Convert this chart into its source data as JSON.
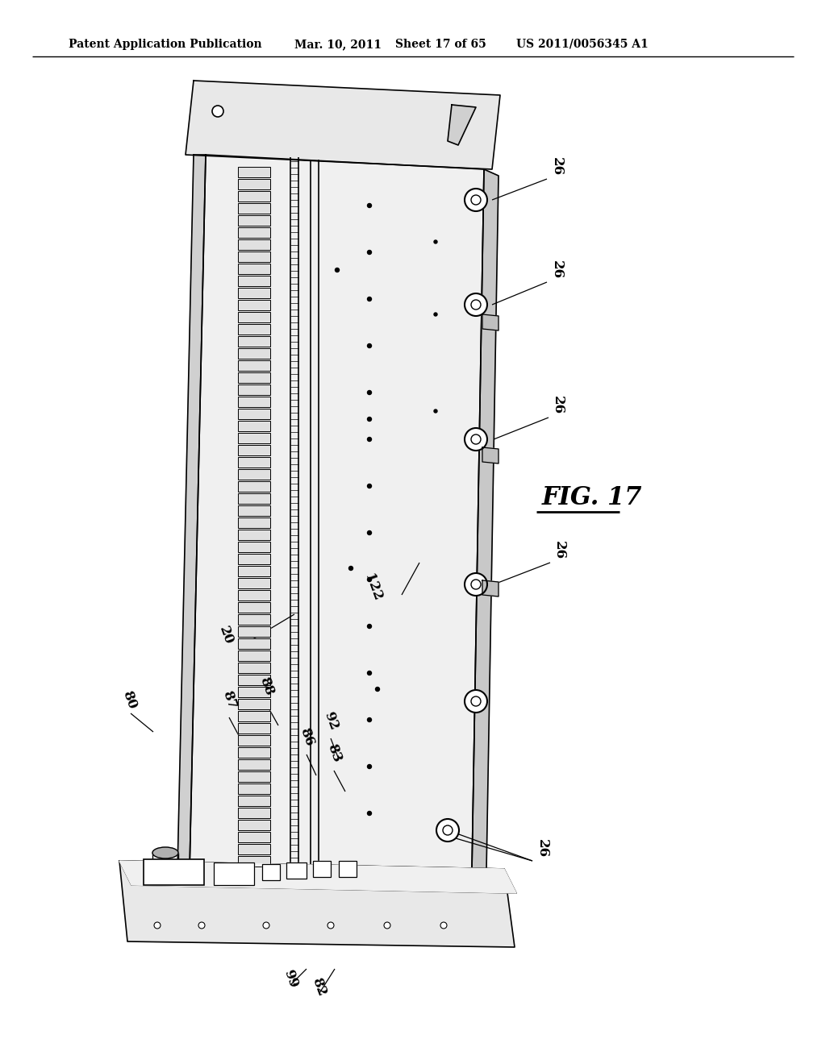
{
  "background_color": "#ffffff",
  "header_text": "Patent Application Publication",
  "header_date": "Mar. 10, 2011",
  "header_sheet": "Sheet 17 of 65",
  "header_patent": "US 2011/0056345 A1",
  "fig_label": "FIG. 17",
  "text_color": "#000000",
  "line_color": "#000000",
  "line_width": 1.2
}
